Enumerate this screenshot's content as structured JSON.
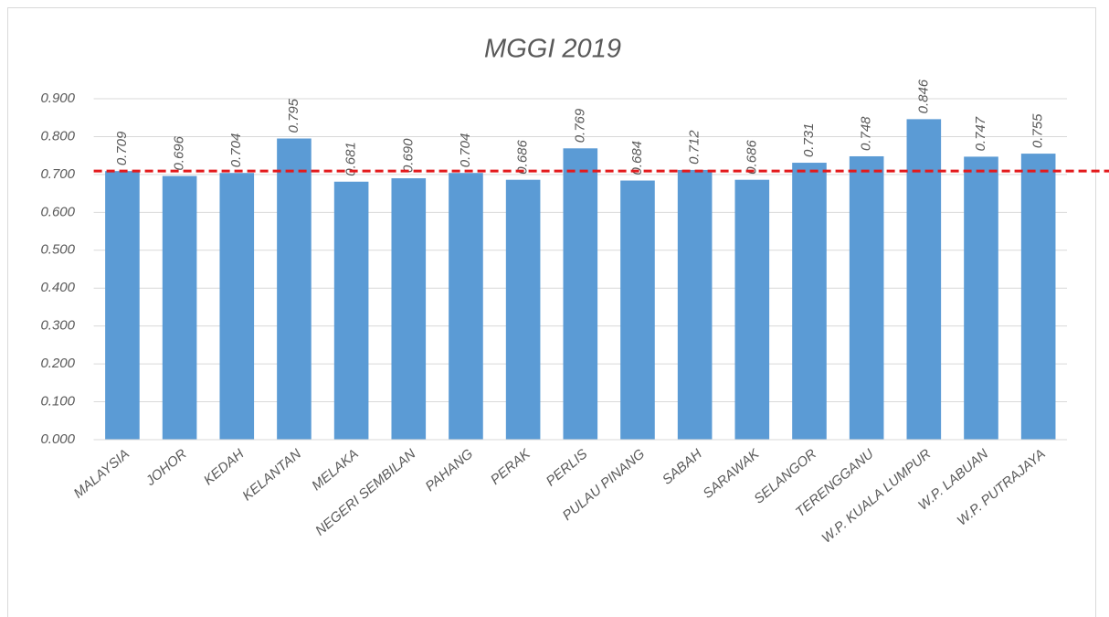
{
  "chart_data": {
    "type": "bar",
    "title": "MGGI 2019",
    "categories": [
      "MALAYSIA",
      "JOHOR",
      "KEDAH",
      "KELANTAN",
      "MELAKA",
      "NEGERI SEMBILAN",
      "PAHANG",
      "PERAK",
      "PERLIS",
      "PULAU PINANG",
      "SABAH",
      "SARAWAK",
      "SELANGOR",
      "TERENGGANU",
      "W.P. KUALA LUMPUR",
      "W.P. LABUAN",
      "W.P. PUTRAJAYA"
    ],
    "values": [
      0.709,
      0.696,
      0.704,
      0.795,
      0.681,
      0.69,
      0.704,
      0.686,
      0.769,
      0.684,
      0.712,
      0.686,
      0.731,
      0.748,
      0.846,
      0.747,
      0.755
    ],
    "value_labels": [
      "0.709",
      "0.696",
      "0.704",
      "0.795",
      "0.681",
      "0.690",
      "0.704",
      "0.686",
      "0.769",
      "0.684",
      "0.712",
      "0.686",
      "0.731",
      "0.748",
      "0.846",
      "0.747",
      "0.755"
    ],
    "color": "#5b9bd5",
    "reference_line_color": "#e31a1c",
    "ylim": [
      0,
      0.9
    ],
    "yticks": [
      {
        "value": 0,
        "label": "0.000"
      },
      {
        "value": 0.1,
        "label": "0.100"
      },
      {
        "value": 0.2,
        "label": "0.200"
      },
      {
        "value": 0.3,
        "label": "0.300"
      },
      {
        "value": 0.4,
        "label": "0.400"
      },
      {
        "value": 0.5,
        "label": "0.500"
      },
      {
        "value": 0.6,
        "label": "0.600"
      },
      {
        "value": 0.7,
        "label": "0.700"
      },
      {
        "value": 0.8,
        "label": "0.800"
      },
      {
        "value": 0.9,
        "label": "0.900"
      }
    ],
    "grid": true
  }
}
